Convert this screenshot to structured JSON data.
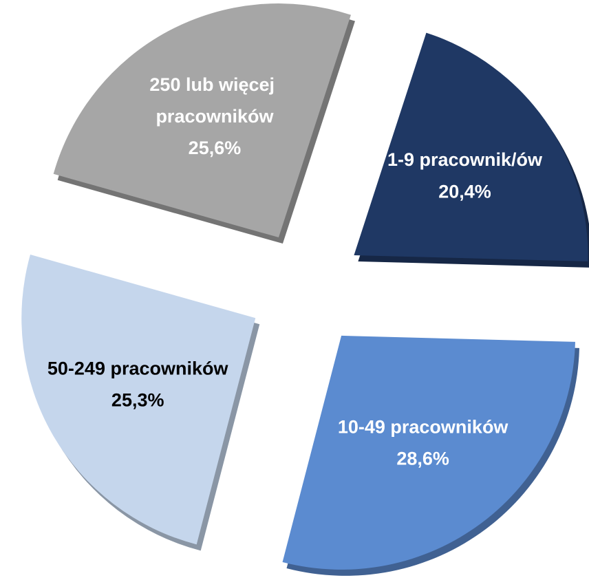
{
  "chart_data": {
    "type": "pie",
    "categories": [
      "1-9 pracownik/ów",
      "10-49 pracowników",
      "50-249 pracowników",
      "250 lub więcej pracowników"
    ],
    "values": [
      20.4,
      28.6,
      25.3,
      25.6
    ],
    "value_labels": [
      "20,4%",
      "28,6%",
      "25,3%",
      "25,6%"
    ],
    "colors": [
      "#1f3864",
      "#5b8bd0",
      "#c5d6ec",
      "#a6a6a6"
    ],
    "label_colors": [
      "#ffffff",
      "#ffffff",
      "#000000",
      "#ffffff"
    ]
  }
}
